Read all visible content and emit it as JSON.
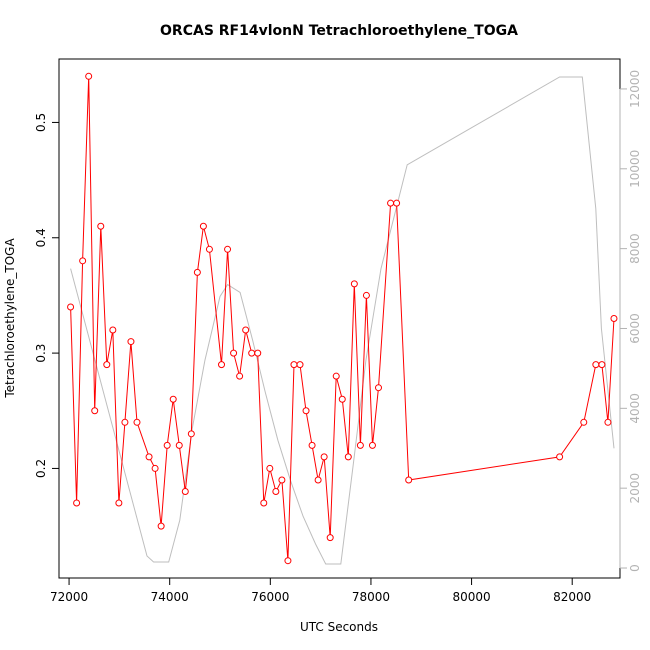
{
  "chart_data": {
    "type": "line",
    "title": "ORCAS RF14vlonN Tetrachloroethylene_TOGA",
    "xlabel": "UTC Seconds",
    "ylabel": "Tetrachloroethylene_TOGA",
    "xlim": [
      71800,
      82950
    ],
    "ylim": [
      0.105,
      0.555
    ],
    "y2lim": [
      -250,
      12750
    ],
    "x_ticks": [
      72000,
      74000,
      76000,
      78000,
      80000,
      82000
    ],
    "y_ticks": [
      0.2,
      0.3,
      0.4,
      0.5
    ],
    "y2_ticks": [
      0,
      2000,
      4000,
      6000,
      8000,
      10000,
      12000
    ],
    "series": [
      {
        "color": "#ff0000",
        "marker": "open-circle",
        "axis": "left",
        "x": [
          72030,
          72150,
          72270,
          72390,
          72510,
          72630,
          72750,
          72870,
          72990,
          73110,
          73230,
          73350,
          73590,
          73710,
          73830,
          73950,
          74070,
          74190,
          74310,
          74430,
          74550,
          74670,
          74790,
          75030,
          75150,
          75270,
          75390,
          75510,
          75630,
          75750,
          75870,
          75990,
          76110,
          76230,
          76350,
          76470,
          76590,
          76710,
          76830,
          76950,
          77070,
          77190,
          77310,
          77430,
          77550,
          77670,
          77790,
          77910,
          78030,
          78150,
          78390,
          78510,
          78750,
          81750,
          82230,
          82470,
          82590,
          82710,
          82830
        ],
        "y": [
          0.34,
          0.17,
          0.38,
          0.54,
          0.25,
          0.41,
          0.29,
          0.32,
          0.17,
          0.24,
          0.31,
          0.24,
          0.21,
          0.2,
          0.15,
          0.22,
          0.26,
          0.22,
          0.18,
          0.23,
          0.37,
          0.41,
          0.39,
          0.29,
          0.39,
          0.3,
          0.28,
          0.32,
          0.3,
          0.3,
          0.17,
          0.2,
          0.18,
          0.19,
          0.12,
          0.29,
          0.29,
          0.25,
          0.22,
          0.19,
          0.21,
          0.14,
          0.28,
          0.26,
          0.21,
          0.36,
          0.22,
          0.35,
          0.22,
          0.27,
          0.43,
          0.43,
          0.19,
          0.21,
          0.24,
          0.29,
          0.29,
          0.24,
          0.33
        ]
      },
      {
        "color": "#bebebe",
        "axis": "right",
        "x": [
          72030,
          73550,
          73680,
          73980,
          74200,
          74450,
          74700,
          75000,
          75150,
          75400,
          75650,
          75900,
          76150,
          76400,
          76650,
          76900,
          77100,
          77400,
          77650,
          77900,
          78200,
          78720,
          81750,
          82200,
          82470,
          82580,
          82830
        ],
        "y": [
          7500,
          300,
          150,
          150,
          1200,
          3500,
          5200,
          6800,
          7100,
          6900,
          5700,
          4400,
          3200,
          2200,
          1300,
          600,
          100,
          100,
          2600,
          5200,
          7500,
          10100,
          12300,
          12300,
          9000,
          6000,
          3000
        ]
      }
    ]
  }
}
